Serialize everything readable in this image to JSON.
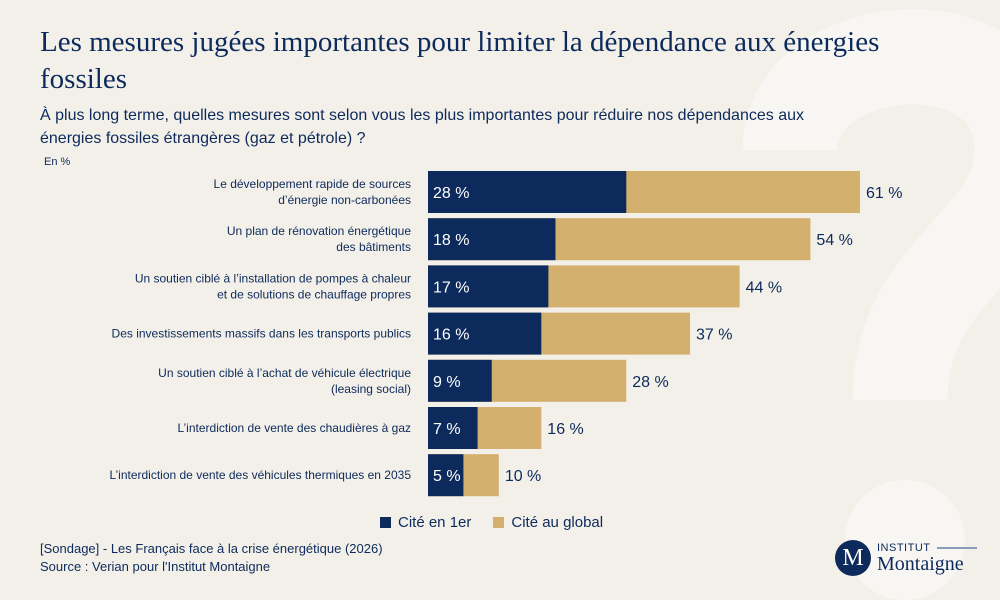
{
  "title": "Les mesures jugées importantes pour limiter la dépendance aux énergies fossiles",
  "subtitle": "À plus long terme, quelles mesures sont selon vous les plus importantes pour réduire nos dépendances aux énergies fossiles étrangères (gaz et pétrole) ?",
  "unit": "En %",
  "chart_data": {
    "type": "bar",
    "orientation": "horizontal",
    "stacking": "overlay",
    "categories": [
      [
        "Le développement rapide de sources",
        "d’énergie non-carbonées"
      ],
      [
        "Un plan de rénovation énergétique",
        "des bâtiments"
      ],
      [
        "Un soutien ciblé à l’installation de pompes à chaleur",
        "et de solutions de chauffage propres"
      ],
      [
        "Des investissements massifs dans les transports publics"
      ],
      [
        "Un soutien ciblé à l’achat de véhicule électrique",
        "(leasing social)"
      ],
      [
        "L’interdiction de vente des chaudières à gaz"
      ],
      [
        "L’interdiction de vente des véhicules thermiques en 2035"
      ]
    ],
    "series": [
      {
        "name": "Cité en 1er",
        "color": "#0d2a5c",
        "values": [
          28,
          18,
          17,
          16,
          9,
          7,
          5
        ]
      },
      {
        "name": "Cité au global",
        "color": "#d3b06d",
        "values": [
          61,
          54,
          44,
          37,
          28,
          16,
          10
        ]
      }
    ],
    "value_suffix": " %",
    "legend": "bottom"
  },
  "footer": {
    "line1": "[Sondage] - Les Français face à la crise énergétique (2026)",
    "line2": "Source : Verian pour l'Institut Montaigne"
  },
  "logo": {
    "letter": "M",
    "top": "INSTITUT",
    "name": "Montaigne"
  }
}
